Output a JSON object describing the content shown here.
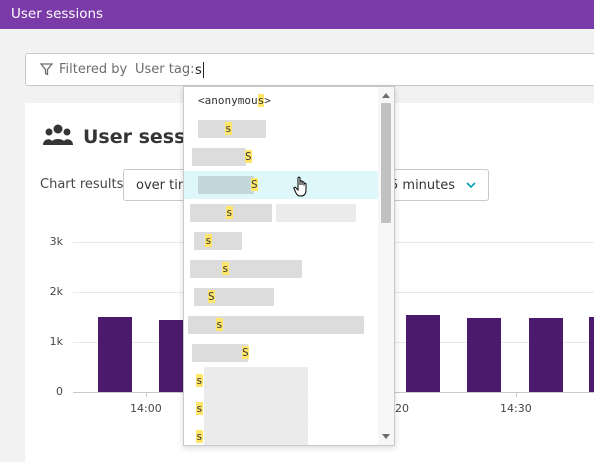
{
  "topbar": {
    "title": "User sessions"
  },
  "filter": {
    "filtered_by_label": "Filtered by",
    "tag_label": "User tag:",
    "input_value": "s"
  },
  "card": {
    "title": "User sessio",
    "chart_results_label": "Chart results",
    "select_mode": "over tin",
    "select_interval": "5 minutes"
  },
  "dropdown": {
    "first_item_prefix": "<anonymou",
    "first_item_match": "s",
    "first_item_suffix": ">",
    "match_char": "s",
    "match_char_upper": "S"
  },
  "chart_data": {
    "type": "bar",
    "yticks": [
      "3k",
      "2k",
      "1k",
      "0"
    ],
    "ylim": [
      0,
      3000
    ],
    "xticks": [
      "14:00",
      "20",
      "14:30"
    ],
    "visible_values": [
      1500,
      1450,
      1540,
      1480,
      1480,
      1500
    ],
    "grid": true
  },
  "colors": {
    "accent": "#7a3aa8",
    "bar": "#4b1a6c",
    "hover": "#def7fb",
    "highlight": "#ffe66b"
  }
}
